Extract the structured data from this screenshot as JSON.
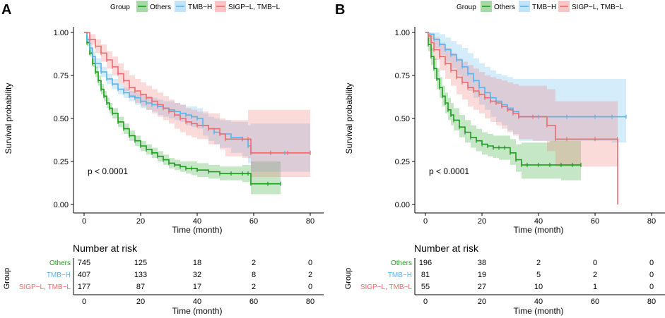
{
  "panels": [
    {
      "letter": "A",
      "legend": {
        "title": "Group",
        "items": [
          {
            "label": "Others",
            "color": "#1a9e1a"
          },
          {
            "label": "TMB−H",
            "color": "#56b4f0"
          },
          {
            "label": "SIGP−L, TMB−L",
            "color": "#f06b6b"
          }
        ]
      },
      "pvalue": "p < 0.0001",
      "risk_table": {
        "title": "Number at risk",
        "ylabel": "Group",
        "xlabel": "Time (month)",
        "time_points": [
          0,
          20,
          40,
          60,
          80
        ],
        "rows": [
          {
            "label": "Others",
            "color": "#1a9e1a",
            "values": [
              "745",
              "125",
              "18",
              "2",
              "0"
            ]
          },
          {
            "label": "TMB−H",
            "color": "#56b4f0",
            "values": [
              "407",
              "133",
              "32",
              "8",
              "2"
            ]
          },
          {
            "label": "SIGP−L, TMB−L",
            "color": "#f06b6b",
            "values": [
              "177",
              "87",
              "17",
              "2",
              "0"
            ]
          }
        ]
      }
    },
    {
      "letter": "B",
      "legend": {
        "title": "Group",
        "items": [
          {
            "label": "Others",
            "color": "#1a9e1a"
          },
          {
            "label": "TMB−H",
            "color": "#56b4f0"
          },
          {
            "label": "SIGP−L, TMB−L",
            "color": "#f06b6b"
          }
        ]
      },
      "pvalue": "p < 0.0001",
      "risk_table": {
        "title": "Number at risk",
        "ylabel": "Group",
        "xlabel": "Time (month)",
        "time_points": [
          0,
          20,
          40,
          60,
          80
        ],
        "rows": [
          {
            "label": "Others",
            "color": "#1a9e1a",
            "values": [
              "196",
              "38",
              "2",
              "0",
              "0"
            ]
          },
          {
            "label": "TMB−H",
            "color": "#56b4f0",
            "values": [
              "81",
              "19",
              "5",
              "2",
              "0"
            ]
          },
          {
            "label": "SIGP−L, TMB−L",
            "color": "#f06b6b",
            "values": [
              "55",
              "27",
              "10",
              "1",
              "0"
            ]
          }
        ]
      }
    }
  ],
  "chart_data": [
    {
      "type": "line",
      "subtype": "kaplan-meier",
      "title": "A",
      "xlabel": "Time (month)",
      "ylabel": "Survival probability",
      "xlim": [
        0,
        80
      ],
      "ylim": [
        0,
        1
      ],
      "xticks": [
        0,
        20,
        40,
        60,
        80
      ],
      "yticks": [
        0,
        0.25,
        0.5,
        0.75,
        1
      ],
      "ytick_labels": [
        "0.00",
        "0.25",
        "0.50",
        "0.75",
        "1.00"
      ],
      "legend_position": "top",
      "series": [
        {
          "name": "Others",
          "color": "#1a9e1a",
          "x": [
            0,
            1,
            2,
            3,
            4,
            5,
            6,
            7,
            8,
            9,
            10,
            12,
            14,
            16,
            18,
            20,
            22,
            24,
            26,
            28,
            30,
            32,
            34,
            36,
            38,
            40,
            44,
            48,
            52,
            56,
            58,
            59,
            65,
            69.5
          ],
          "y": [
            1,
            0.94,
            0.88,
            0.82,
            0.77,
            0.72,
            0.67,
            0.63,
            0.59,
            0.56,
            0.53,
            0.48,
            0.44,
            0.4,
            0.37,
            0.34,
            0.32,
            0.3,
            0.28,
            0.26,
            0.24,
            0.23,
            0.22,
            0.21,
            0.21,
            0.2,
            0.19,
            0.18,
            0.18,
            0.18,
            0.18,
            0.12,
            0.12,
            0.12
          ],
          "lower": [
            1,
            0.92,
            0.86,
            0.8,
            0.74,
            0.69,
            0.64,
            0.6,
            0.56,
            0.53,
            0.5,
            0.45,
            0.41,
            0.37,
            0.34,
            0.31,
            0.29,
            0.27,
            0.25,
            0.23,
            0.21,
            0.2,
            0.19,
            0.18,
            0.17,
            0.16,
            0.15,
            0.14,
            0.14,
            0.13,
            0.13,
            0.06,
            0.06,
            0.06
          ],
          "upper": [
            1,
            0.96,
            0.91,
            0.85,
            0.8,
            0.75,
            0.7,
            0.66,
            0.62,
            0.59,
            0.56,
            0.51,
            0.47,
            0.43,
            0.4,
            0.37,
            0.35,
            0.33,
            0.31,
            0.29,
            0.27,
            0.26,
            0.25,
            0.25,
            0.25,
            0.24,
            0.23,
            0.22,
            0.22,
            0.23,
            0.23,
            0.25,
            0.25,
            0.25
          ]
        },
        {
          "name": "TMB−H",
          "color": "#56b4f0",
          "x": [
            0,
            1,
            2,
            3,
            4,
            6,
            8,
            10,
            12,
            14,
            16,
            18,
            20,
            22,
            24,
            26,
            28,
            30,
            32,
            34,
            36,
            38,
            40,
            42,
            44,
            46,
            48,
            52,
            56,
            58,
            59,
            66,
            71,
            80
          ],
          "y": [
            1,
            0.96,
            0.91,
            0.86,
            0.82,
            0.77,
            0.73,
            0.7,
            0.67,
            0.65,
            0.63,
            0.62,
            0.6,
            0.59,
            0.58,
            0.57,
            0.56,
            0.55,
            0.54,
            0.53,
            0.52,
            0.51,
            0.5,
            0.46,
            0.44,
            0.42,
            0.41,
            0.39,
            0.38,
            0.34,
            0.3,
            0.3,
            0.3,
            0.3
          ],
          "lower": [
            1,
            0.94,
            0.88,
            0.83,
            0.79,
            0.74,
            0.7,
            0.67,
            0.64,
            0.62,
            0.6,
            0.58,
            0.56,
            0.55,
            0.54,
            0.52,
            0.51,
            0.5,
            0.49,
            0.48,
            0.46,
            0.45,
            0.44,
            0.4,
            0.37,
            0.35,
            0.33,
            0.3,
            0.28,
            0.24,
            0.19,
            0.19,
            0.19,
            0.19
          ],
          "upper": [
            1,
            0.98,
            0.94,
            0.89,
            0.85,
            0.8,
            0.76,
            0.73,
            0.7,
            0.68,
            0.66,
            0.65,
            0.64,
            0.63,
            0.62,
            0.61,
            0.6,
            0.6,
            0.59,
            0.58,
            0.57,
            0.57,
            0.56,
            0.53,
            0.51,
            0.5,
            0.49,
            0.48,
            0.48,
            0.46,
            0.47,
            0.47,
            0.47,
            0.47
          ]
        },
        {
          "name": "SIGP−L, TMB−L",
          "color": "#f06b6b",
          "x": [
            0,
            2,
            4,
            6,
            8,
            10,
            12,
            14,
            16,
            18,
            20,
            22,
            24,
            26,
            28,
            30,
            32,
            34,
            36,
            38,
            40,
            44,
            48,
            50,
            56,
            58,
            59,
            66,
            72,
            80
          ],
          "y": [
            1,
            0.96,
            0.92,
            0.88,
            0.84,
            0.8,
            0.76,
            0.72,
            0.68,
            0.66,
            0.64,
            0.62,
            0.6,
            0.58,
            0.56,
            0.54,
            0.52,
            0.5,
            0.48,
            0.47,
            0.46,
            0.44,
            0.41,
            0.38,
            0.38,
            0.38,
            0.3,
            0.3,
            0.3,
            0.3
          ],
          "lower": [
            1,
            0.93,
            0.88,
            0.83,
            0.79,
            0.75,
            0.7,
            0.66,
            0.62,
            0.59,
            0.57,
            0.55,
            0.53,
            0.51,
            0.49,
            0.47,
            0.44,
            0.42,
            0.4,
            0.39,
            0.38,
            0.35,
            0.32,
            0.28,
            0.27,
            0.27,
            0.16,
            0.16,
            0.16,
            0.16
          ],
          "upper": [
            1,
            0.99,
            0.96,
            0.93,
            0.89,
            0.86,
            0.82,
            0.78,
            0.75,
            0.73,
            0.71,
            0.69,
            0.67,
            0.65,
            0.63,
            0.61,
            0.59,
            0.58,
            0.56,
            0.55,
            0.54,
            0.53,
            0.5,
            0.49,
            0.49,
            0.55,
            0.55,
            0.55,
            0.55,
            0.55
          ]
        }
      ]
    },
    {
      "type": "line",
      "subtype": "kaplan-meier",
      "title": "B",
      "xlabel": "Time (month)",
      "ylabel": "Survival probability",
      "xlim": [
        0,
        80
      ],
      "ylim": [
        0,
        1
      ],
      "xticks": [
        0,
        20,
        40,
        60,
        80
      ],
      "yticks": [
        0,
        0.25,
        0.5,
        0.75,
        1
      ],
      "ytick_labels": [
        "0.00",
        "0.25",
        "0.50",
        "0.75",
        "1.00"
      ],
      "legend_position": "top",
      "series": [
        {
          "name": "Others",
          "color": "#1a9e1a",
          "x": [
            0,
            1,
            2,
            3,
            4,
            5,
            6,
            7,
            8,
            9,
            10,
            12,
            14,
            16,
            18,
            20,
            22,
            24,
            26,
            28,
            30,
            32,
            34,
            36,
            40,
            44,
            48,
            52,
            55
          ],
          "y": [
            1,
            0.93,
            0.86,
            0.79,
            0.73,
            0.68,
            0.63,
            0.59,
            0.55,
            0.52,
            0.49,
            0.45,
            0.42,
            0.39,
            0.37,
            0.35,
            0.34,
            0.33,
            0.33,
            0.33,
            0.3,
            0.26,
            0.23,
            0.23,
            0.23,
            0.23,
            0.23,
            0.23,
            0.23
          ],
          "lower": [
            1,
            0.89,
            0.81,
            0.73,
            0.67,
            0.62,
            0.57,
            0.53,
            0.49,
            0.46,
            0.43,
            0.39,
            0.36,
            0.33,
            0.31,
            0.29,
            0.28,
            0.27,
            0.26,
            0.26,
            0.23,
            0.19,
            0.15,
            0.15,
            0.15,
            0.15,
            0.14,
            0.14,
            0.14
          ],
          "upper": [
            1,
            0.97,
            0.91,
            0.85,
            0.79,
            0.74,
            0.69,
            0.65,
            0.62,
            0.59,
            0.56,
            0.52,
            0.49,
            0.46,
            0.44,
            0.42,
            0.41,
            0.4,
            0.4,
            0.4,
            0.38,
            0.35,
            0.36,
            0.36,
            0.36,
            0.37,
            0.37,
            0.37,
            0.37
          ]
        },
        {
          "name": "TMB−H",
          "color": "#56b4f0",
          "x": [
            0,
            1,
            3,
            5,
            7,
            9,
            11,
            13,
            15,
            17,
            19,
            21,
            23,
            25,
            27,
            29,
            31,
            33,
            40,
            50,
            60,
            66,
            71
          ],
          "y": [
            1,
            0.99,
            0.96,
            0.93,
            0.9,
            0.87,
            0.84,
            0.8,
            0.76,
            0.72,
            0.68,
            0.65,
            0.62,
            0.6,
            0.58,
            0.56,
            0.54,
            0.51,
            0.51,
            0.51,
            0.51,
            0.51,
            0.51
          ],
          "lower": [
            1,
            0.96,
            0.91,
            0.87,
            0.83,
            0.79,
            0.75,
            0.71,
            0.66,
            0.62,
            0.58,
            0.55,
            0.51,
            0.48,
            0.46,
            0.43,
            0.41,
            0.37,
            0.37,
            0.37,
            0.37,
            0.36,
            0.35
          ],
          "upper": [
            1,
            1,
            1,
            0.99,
            0.97,
            0.95,
            0.93,
            0.91,
            0.88,
            0.85,
            0.82,
            0.8,
            0.78,
            0.76,
            0.75,
            0.74,
            0.73,
            0.73,
            0.73,
            0.73,
            0.73,
            0.73,
            0.73
          ]
        },
        {
          "name": "SIGP−L, TMB−L",
          "color": "#f06b6b",
          "x": [
            0,
            1,
            2,
            3,
            5,
            7,
            9,
            11,
            13,
            15,
            17,
            19,
            21,
            23,
            25,
            27,
            29,
            31,
            33,
            38,
            43,
            46,
            50,
            60,
            67.9,
            68
          ],
          "y": [
            1,
            0.98,
            0.94,
            0.9,
            0.86,
            0.82,
            0.78,
            0.74,
            0.71,
            0.68,
            0.66,
            0.64,
            0.62,
            0.6,
            0.59,
            0.57,
            0.55,
            0.53,
            0.51,
            0.51,
            0.46,
            0.38,
            0.38,
            0.38,
            0.38,
            0.0
          ],
          "lower": [
            1,
            0.94,
            0.89,
            0.84,
            0.78,
            0.73,
            0.69,
            0.64,
            0.61,
            0.57,
            0.55,
            0.53,
            0.5,
            0.48,
            0.46,
            0.44,
            0.42,
            0.4,
            0.38,
            0.37,
            0.31,
            0.22,
            0.22,
            0.22,
            0.22,
            0.0
          ],
          "upper": [
            1,
            1,
            0.99,
            0.97,
            0.94,
            0.91,
            0.88,
            0.85,
            0.83,
            0.81,
            0.79,
            0.77,
            0.75,
            0.74,
            0.73,
            0.72,
            0.71,
            0.7,
            0.69,
            0.69,
            0.67,
            0.6,
            0.6,
            0.6,
            0.6,
            0.0
          ]
        }
      ]
    }
  ]
}
